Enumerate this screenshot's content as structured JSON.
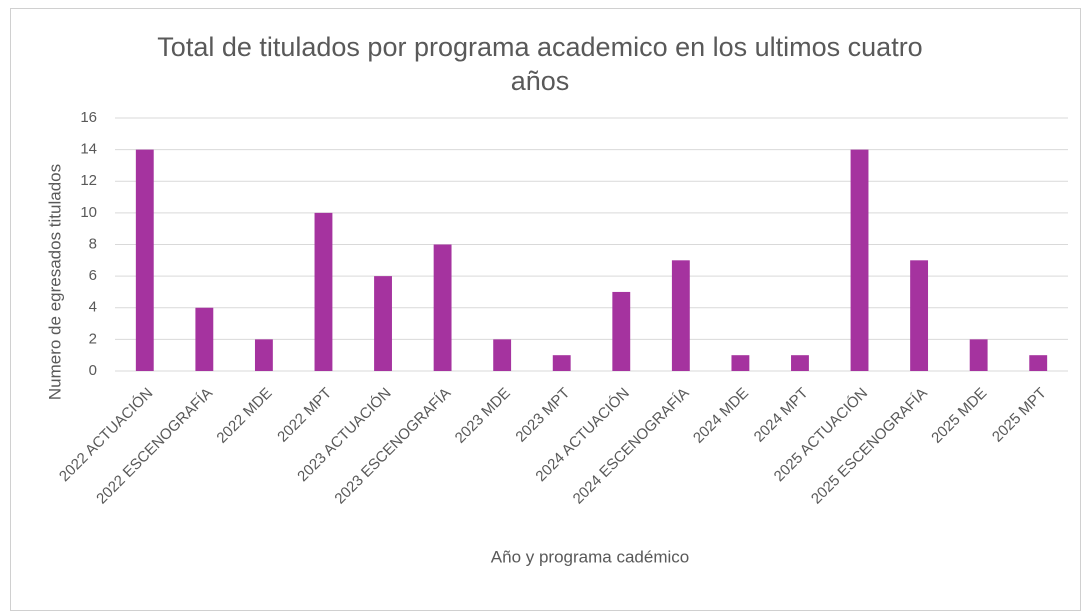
{
  "chart_data": {
    "type": "bar",
    "title": "Total de titulados por programa academico en los ultimos cuatro años",
    "x_label": "Año y programa cadémico",
    "y_label": "Numero de egresados titulados",
    "categories": [
      "2022 ACTUACIÓN",
      "2022 ESCENOGRAFÍA",
      "2022 MDE",
      "2022 MPT",
      "2023 ACTUACIÓN",
      "2023 ESCENOGRAFÍA",
      "2023 MDE",
      "2023 MPT",
      "2024 ACTUACIÓN",
      "2024 ESCENOGRAFÍA",
      "2024 MDE",
      "2024 MPT",
      "2025 ACTUACIÓN",
      "2025 ESCENOGRAFÍA",
      "2025 MDE",
      "2025 MPT"
    ],
    "values": [
      14,
      4,
      2,
      10,
      6,
      8,
      2,
      1,
      5,
      7,
      1,
      1,
      14,
      7,
      2,
      1
    ],
    "color": "#a5339f",
    "ylim": [
      0,
      16
    ],
    "yticks": [
      0,
      2,
      4,
      6,
      8,
      10,
      12,
      14,
      16
    ],
    "grid": true
  }
}
